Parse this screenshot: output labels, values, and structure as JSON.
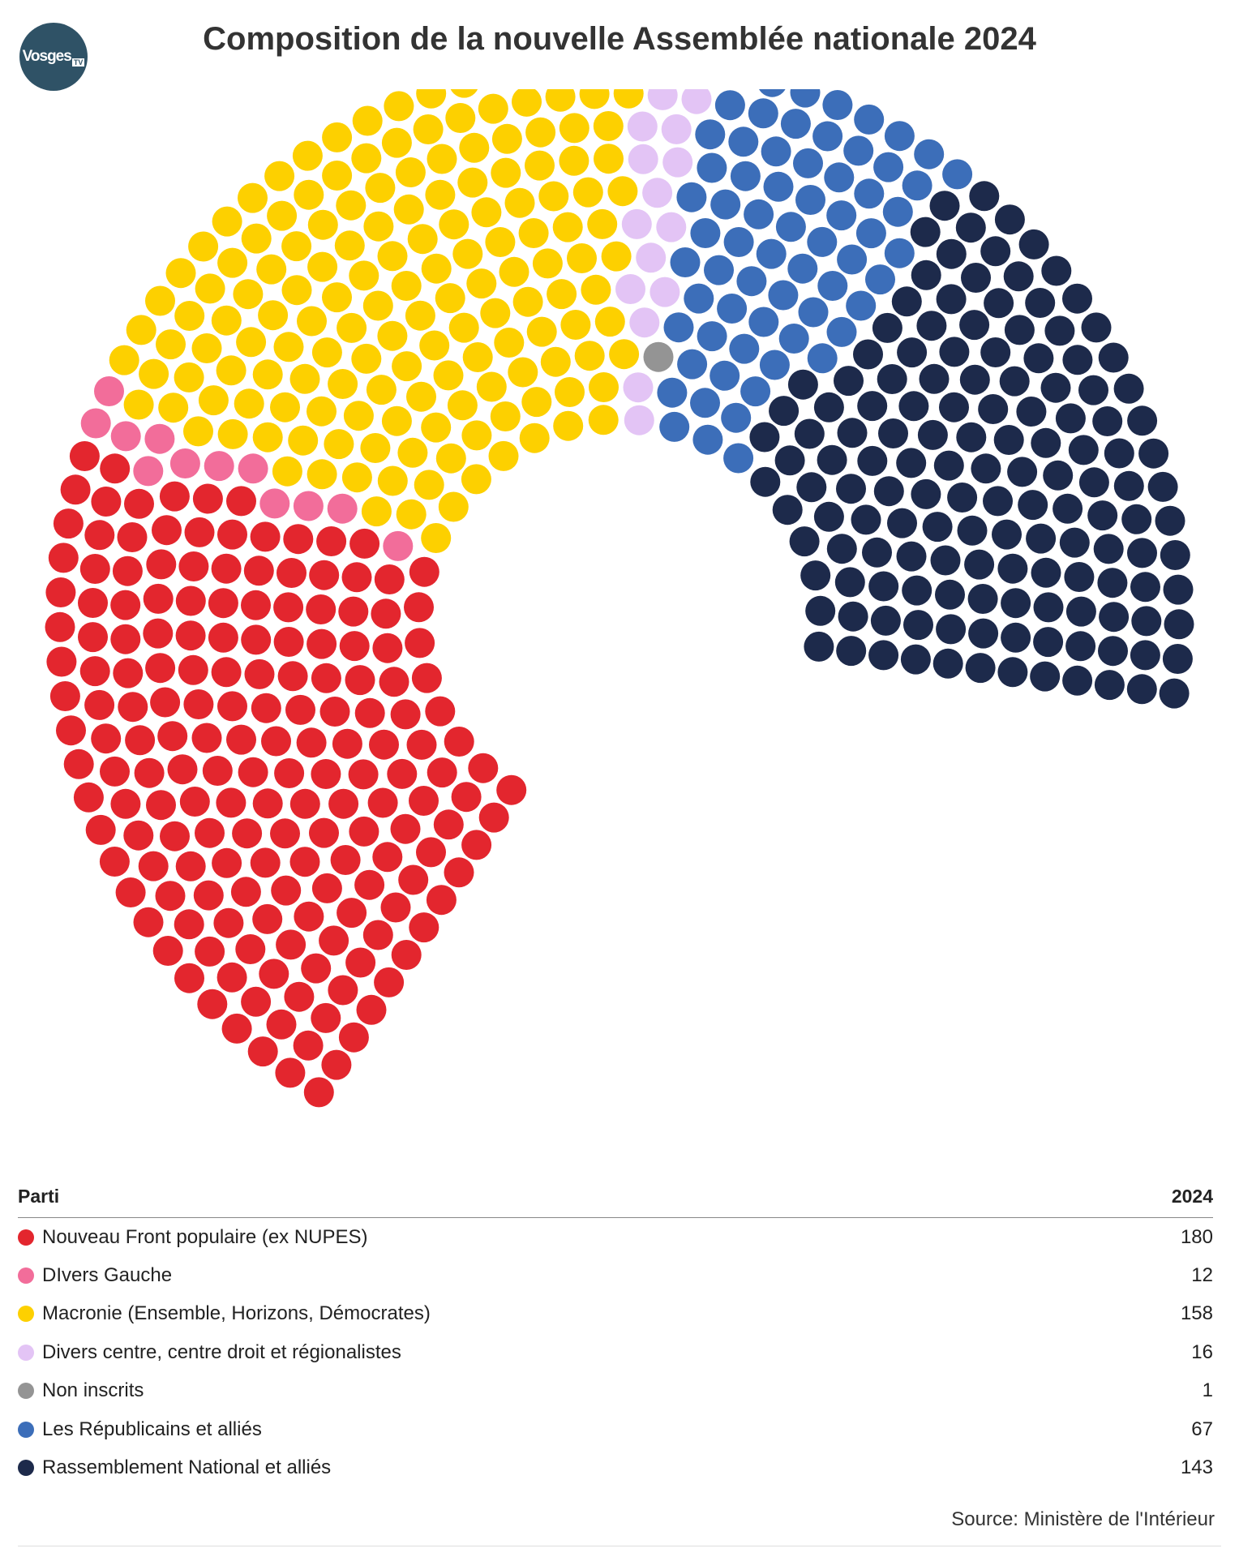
{
  "header": {
    "title": "Composition de la nouvelle Assemblée nationale 2024",
    "logo_text": "Vosges",
    "logo_sub": "TV"
  },
  "table": {
    "col_party": "Parti",
    "col_year": "2024"
  },
  "source": "Source: Ministère de l'Intérieur",
  "chart_data": {
    "type": "parliament",
    "title": "Composition de la nouvelle Assemblée nationale 2024",
    "total_seats": 577,
    "series": [
      {
        "name": "Nouveau Front populaire (ex NUPES)",
        "seats": 180,
        "color": "#e3262e"
      },
      {
        "name": "DIvers Gauche",
        "seats": 12,
        "color": "#f26d9a"
      },
      {
        "name": "Macronie (Ensemble, Horizons, Démocrates)",
        "seats": 158,
        "color": "#fdd000"
      },
      {
        "name": "Divers centre, centre droit et régionalistes",
        "seats": 16,
        "color": "#e3c4f5"
      },
      {
        "name": "Non inscrits",
        "seats": 1,
        "color": "#949494"
      },
      {
        "name": "Les Républicains et alliés",
        "seats": 67,
        "color": "#3c6eb9"
      },
      {
        "name": "Rassemblement National et alliés",
        "seats": 143,
        "color": "#1d2a4b"
      }
    ]
  }
}
